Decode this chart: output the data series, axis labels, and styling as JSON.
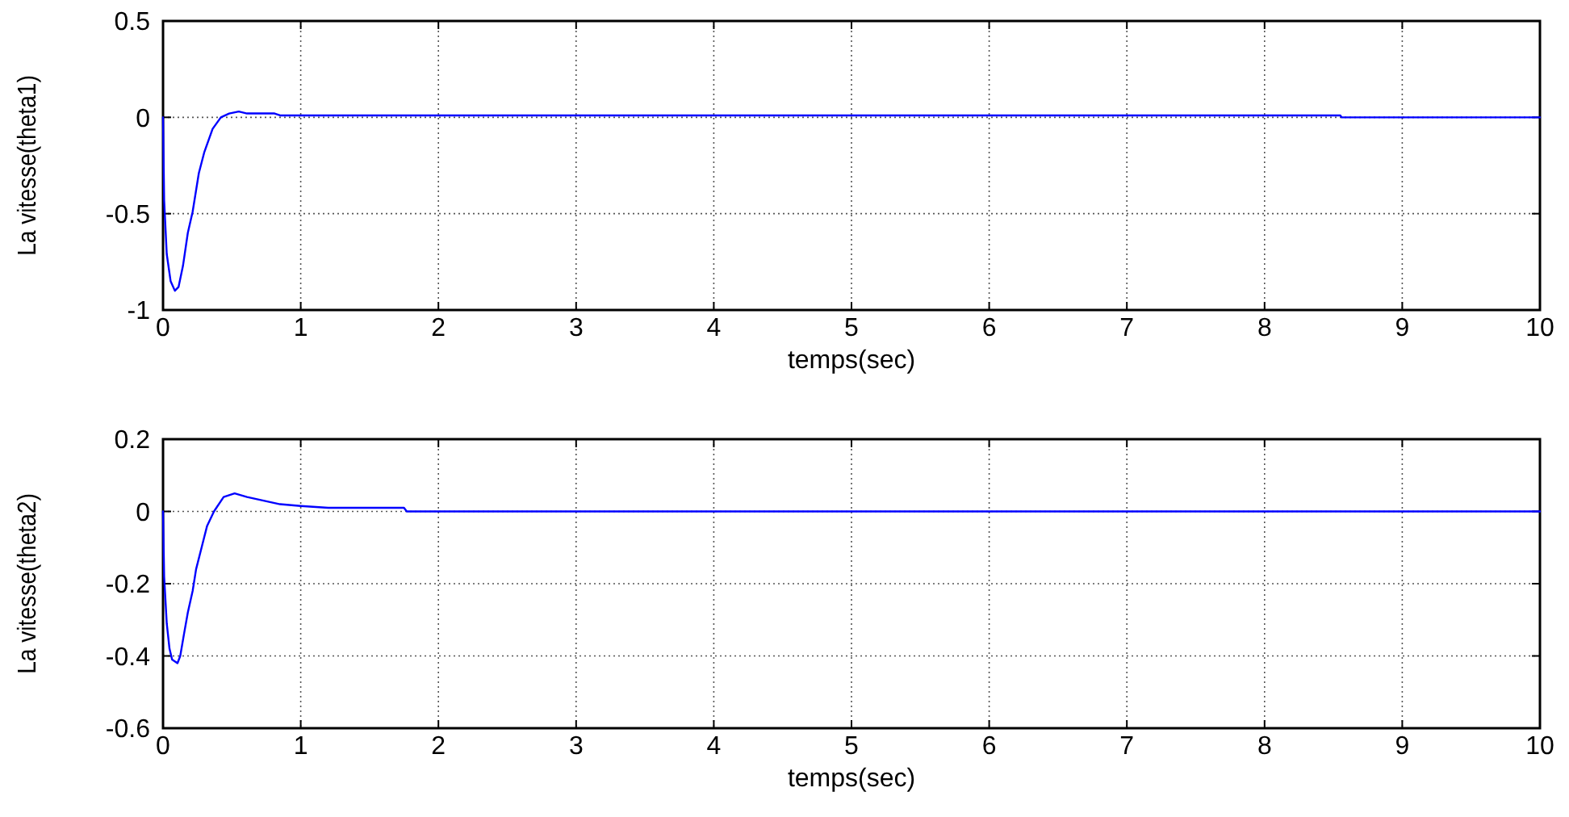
{
  "chart_data": [
    {
      "type": "line",
      "xlabel": "temps(sec)",
      "ylabel": "La vitesse(theta1)",
      "color": "#0000ff",
      "grid": true,
      "x": [
        0,
        0.008,
        0.027,
        0.055,
        0.086,
        0.113,
        0.145,
        0.18,
        0.215,
        0.26,
        0.3,
        0.36,
        0.42,
        0.48,
        0.55,
        0.61,
        0.81,
        0.85,
        8.55,
        8.56,
        10
      ],
      "values": [
        0,
        -0.43,
        -0.71,
        -0.85,
        -0.9,
        -0.88,
        -0.77,
        -0.6,
        -0.49,
        -0.29,
        -0.18,
        -0.06,
        0,
        0.02,
        0.03,
        0.02,
        0.02,
        0.01,
        0.01,
        0,
        0
      ],
      "xlim": [
        0,
        10
      ],
      "ylim": [
        -1,
        0.5
      ],
      "xticks": [
        0,
        1,
        2,
        3,
        4,
        5,
        6,
        7,
        8,
        9,
        10
      ],
      "yticks": [
        -1,
        -0.5,
        0,
        0.5
      ]
    },
    {
      "type": "line",
      "xlabel": "temps(sec)",
      "ylabel": "La vitesse(theta2)",
      "color": "#0000ff",
      "grid": true,
      "x": [
        0,
        0.008,
        0.027,
        0.047,
        0.066,
        0.105,
        0.125,
        0.152,
        0.18,
        0.215,
        0.24,
        0.28,
        0.32,
        0.37,
        0.44,
        0.52,
        0.61,
        0.73,
        0.85,
        1,
        1.2,
        1.75,
        1.77,
        10
      ],
      "values": [
        0,
        -0.18,
        -0.31,
        -0.38,
        -0.41,
        -0.42,
        -0.4,
        -0.34,
        -0.28,
        -0.22,
        -0.16,
        -0.1,
        -0.04,
        0,
        0.04,
        0.05,
        0.04,
        0.03,
        0.02,
        0.015,
        0.01,
        0.01,
        0,
        0
      ],
      "xlim": [
        0,
        10
      ],
      "ylim": [
        -0.6,
        0.2
      ],
      "xticks": [
        0,
        1,
        2,
        3,
        4,
        5,
        6,
        7,
        8,
        9,
        10
      ],
      "yticks": [
        -0.6,
        -0.4,
        -0.2,
        0,
        0.2
      ]
    }
  ]
}
